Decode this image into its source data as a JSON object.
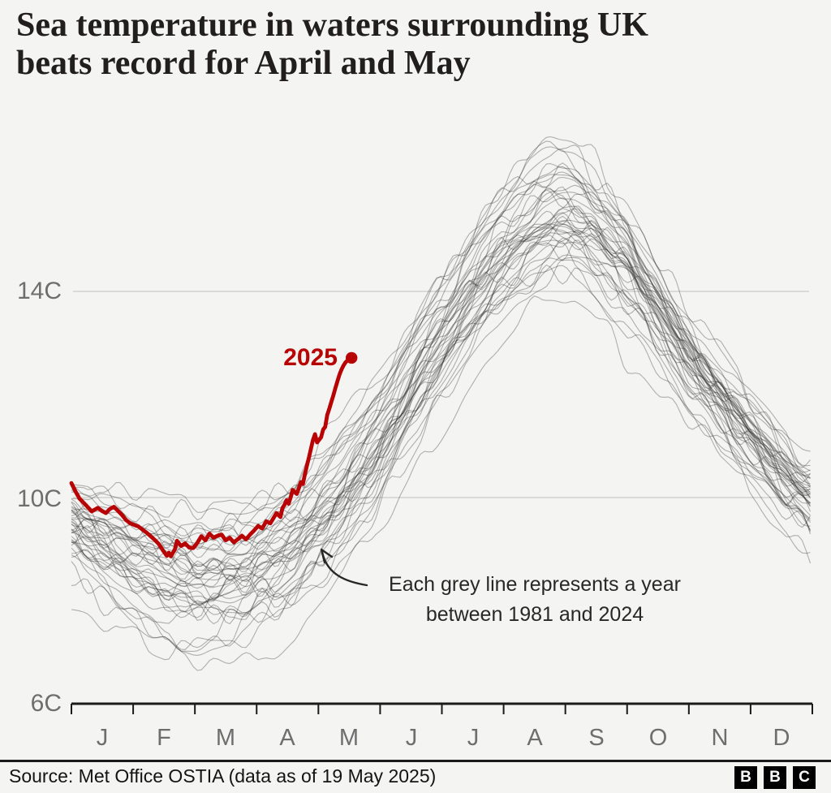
{
  "header": {
    "title_line1": "Sea temperature in waters surrounding UK",
    "title_line2": "beats record for April and May"
  },
  "annotation": {
    "line1": "Each grey line represents a year",
    "line2": "between 1981 and 2024"
  },
  "footer": {
    "source": "Source: Met Office OSTIA (data as of 19 May 2025)",
    "logo_letters": [
      "B",
      "B",
      "C"
    ]
  },
  "colors": {
    "accent_red": "#b80000",
    "grey_line": "rgba(40,40,40,0.34)",
    "gridline": "#c9c9c9",
    "axis": "#1a1a1a",
    "tick_label": "#6e6e6e",
    "annotation_ink": "#282828"
  },
  "chart_data": {
    "type": "line",
    "title": "Sea temperature in waters surrounding UK beats record for April and May",
    "unit": "C",
    "ylim": [
      6,
      18
    ],
    "grid": "horizontal-only",
    "legend_position": "none",
    "y_ticks": [
      {
        "value": 14,
        "label": "14C",
        "gridline": true
      },
      {
        "value": 10,
        "label": "10C",
        "gridline": true
      },
      {
        "value": 6,
        "label": "6C",
        "gridline": false
      }
    ],
    "x_tick_labels": [
      "J",
      "F",
      "M",
      "A",
      "M",
      "J",
      "J",
      "A",
      "S",
      "O",
      "N",
      "D"
    ],
    "x_range_days": [
      0,
      365
    ],
    "series": [
      {
        "name": "2025",
        "color": "#b80000",
        "end_marker": "dot",
        "last_value_c": 12.71,
        "points_day_temp": [
          [
            0,
            10.28
          ],
          [
            2,
            10.12
          ],
          [
            4,
            9.98
          ],
          [
            7,
            9.86
          ],
          [
            10,
            9.73
          ],
          [
            13,
            9.8
          ],
          [
            15,
            9.74
          ],
          [
            17,
            9.7
          ],
          [
            19,
            9.78
          ],
          [
            21,
            9.82
          ],
          [
            23,
            9.74
          ],
          [
            25,
            9.66
          ],
          [
            27,
            9.56
          ],
          [
            29,
            9.5
          ],
          [
            31,
            9.47
          ],
          [
            33,
            9.44
          ],
          [
            35,
            9.38
          ],
          [
            37,
            9.32
          ],
          [
            39,
            9.25
          ],
          [
            41,
            9.18
          ],
          [
            43,
            9.1
          ],
          [
            45,
            8.98
          ],
          [
            47,
            8.87
          ],
          [
            48,
            8.93
          ],
          [
            49,
            8.86
          ],
          [
            51,
            9.0
          ],
          [
            52,
            9.16
          ],
          [
            54,
            9.06
          ],
          [
            56,
            9.11
          ],
          [
            58,
            9.03
          ],
          [
            60,
            9.02
          ],
          [
            62,
            9.12
          ],
          [
            64,
            9.25
          ],
          [
            66,
            9.17
          ],
          [
            68,
            9.3
          ],
          [
            70,
            9.22
          ],
          [
            72,
            9.26
          ],
          [
            74,
            9.28
          ],
          [
            76,
            9.17
          ],
          [
            78,
            9.22
          ],
          [
            80,
            9.13
          ],
          [
            82,
            9.19
          ],
          [
            84,
            9.26
          ],
          [
            86,
            9.19
          ],
          [
            88,
            9.28
          ],
          [
            90,
            9.36
          ],
          [
            92,
            9.45
          ],
          [
            94,
            9.4
          ],
          [
            96,
            9.54
          ],
          [
            98,
            9.5
          ],
          [
            100,
            9.63
          ],
          [
            101,
            9.7
          ],
          [
            103,
            9.62
          ],
          [
            104,
            9.8
          ],
          [
            105,
            9.86
          ],
          [
            106,
            9.95
          ],
          [
            107,
            9.88
          ],
          [
            108,
            10.0
          ],
          [
            109,
            10.15
          ],
          [
            111,
            10.07
          ],
          [
            112,
            10.18
          ],
          [
            113,
            10.3
          ],
          [
            114,
            10.26
          ],
          [
            115,
            10.45
          ],
          [
            116,
            10.62
          ],
          [
            117,
            10.78
          ],
          [
            118,
            10.95
          ],
          [
            119,
            11.12
          ],
          [
            120,
            11.23
          ],
          [
            121,
            11.07
          ],
          [
            122,
            11.12
          ],
          [
            123,
            11.17
          ],
          [
            124,
            11.32
          ],
          [
            125,
            11.37
          ],
          [
            126,
            11.6
          ],
          [
            127,
            11.72
          ],
          [
            128,
            11.85
          ],
          [
            129,
            11.98
          ],
          [
            130,
            12.12
          ],
          [
            131,
            12.25
          ],
          [
            132,
            12.38
          ],
          [
            133,
            12.48
          ],
          [
            134,
            12.56
          ],
          [
            135,
            12.62
          ],
          [
            136,
            12.66
          ],
          [
            137,
            12.69
          ],
          [
            138,
            12.71
          ]
        ]
      }
    ],
    "grey_years": {
      "label": "1981-2024",
      "count": 44,
      "month_anchor_days": [
        0,
        31,
        59,
        90,
        120,
        151,
        181,
        212,
        243,
        273,
        304,
        334,
        365
      ],
      "mean_c": [
        9.4,
        8.75,
        8.35,
        8.55,
        9.45,
        11.05,
        13.0,
        14.6,
        15.4,
        14.35,
        12.6,
        11.15,
        9.9
      ],
      "spread_c": [
        0.7,
        0.95,
        1.05,
        1.0,
        1.0,
        1.0,
        1.0,
        1.1,
        1.05,
        0.85,
        0.75,
        0.7,
        0.7
      ],
      "wiggle_c": 0.28,
      "seed": 20250519
    }
  }
}
